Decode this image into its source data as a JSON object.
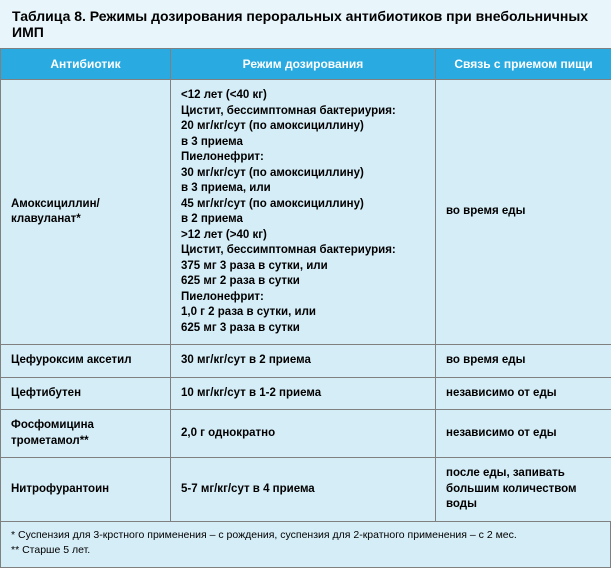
{
  "title": "Таблица 8. Режимы дозирования пероральных антибиотиков при внебольничных ИМП",
  "columns": [
    "Антибиотик",
    "Режим дозирования",
    "Связь с приемом пищи"
  ],
  "rows": [
    {
      "antibiotic": "Амоксициллин/клавуланат*",
      "dosing_lines": [
        "<12 лет (<40 кг)",
        "Цистит, бессимптомная бактериурия:",
        "20 мг/кг/сут (по амоксициллину)",
        "в 3 приема",
        "Пиелонефрит:",
        "30 мг/кг/сут (по амоксициллину)",
        "в 3 приема, или",
        "45 мг/кг/сут (по амоксициллину)",
        "в 2 приема",
        ">12 лет (>40 кг)",
        "Цистит, бессимптомная бактериурия:",
        "375 мг 3 раза в сутки, или",
        "625 мг 2 раза в сутки",
        "Пиелонефрит:",
        "1,0 г 2 раза в сутки, или",
        " 625 мг 3 раза в сутки"
      ],
      "food": "во время еды"
    },
    {
      "antibiotic": "Цефуроксим аксетил",
      "dosing": "30 мг/кг/сут в 2 приема",
      "food": "во время еды"
    },
    {
      "antibiotic": "Цефтибутен",
      "dosing": "10 мг/кг/сут в 1-2 приема",
      "food": "независимо от еды"
    },
    {
      "antibiotic": "Фосфомицина трометамол**",
      "dosing": "2,0 г однократно",
      "food": "независимо от еды"
    },
    {
      "antibiotic": "Нитрофурантоин",
      "dosing": "5-7 мг/кг/сут в 4 приема",
      "food": "после еды, запивать большим количеством воды"
    }
  ],
  "footnotes": [
    "* Суспензия для 3-крстного применения – с рождения, суспензия для 2-кратного применения – с 2 мес.",
    "** Старше 5 лет."
  ],
  "colors": {
    "header_bg": "#29abe2",
    "cell_bg": "#d5edf7",
    "wrap_bg": "#e8f5fa",
    "border": "#808080"
  }
}
